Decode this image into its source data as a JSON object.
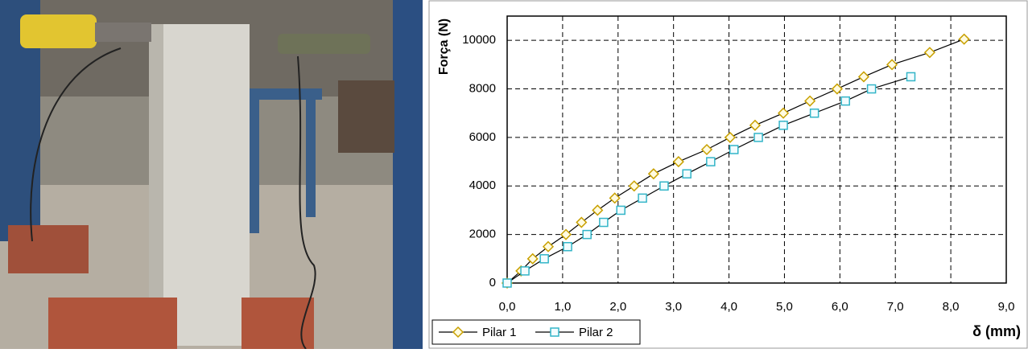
{
  "chart_data": {
    "type": "line",
    "x_label": "δ (mm)",
    "y_label": "Força (N)",
    "xlim": [
      0,
      9
    ],
    "ylim": [
      0,
      11000
    ],
    "xticks": [
      {
        "value": 0,
        "label": "0,0"
      },
      {
        "value": 1,
        "label": "1,0"
      },
      {
        "value": 2,
        "label": "2,0"
      },
      {
        "value": 3,
        "label": "3,0"
      },
      {
        "value": 4,
        "label": "4,0"
      },
      {
        "value": 5,
        "label": "5,0"
      },
      {
        "value": 6,
        "label": "6,0"
      },
      {
        "value": 7,
        "label": "7,0"
      },
      {
        "value": 8,
        "label": "8,0"
      },
      {
        "value": 9,
        "label": "9,0"
      }
    ],
    "yticks": [
      0,
      2000,
      4000,
      6000,
      8000,
      10000
    ],
    "grid": true,
    "legend": "bottom-left",
    "series": [
      {
        "name": "Pilar 1",
        "color": "#c8a000",
        "marker": "diamond",
        "x": [
          0,
          0.25,
          0.46,
          0.74,
          1.06,
          1.34,
          1.63,
          1.94,
          2.29,
          2.64,
          3.09,
          3.6,
          4.02,
          4.47,
          4.98,
          5.46,
          5.95,
          6.43,
          6.94,
          7.62,
          8.24
        ],
        "values": [
          0,
          500,
          1000,
          1500,
          2000,
          2500,
          3000,
          3500,
          4000,
          4500,
          5000,
          5500,
          6000,
          6500,
          7000,
          7500,
          8000,
          8500,
          9000,
          9500,
          10050
        ]
      },
      {
        "name": "Pilar 2",
        "color": "#33b5c8",
        "marker": "square",
        "x": [
          0,
          0.32,
          0.67,
          1.09,
          1.44,
          1.74,
          2.05,
          2.44,
          2.83,
          3.24,
          3.67,
          4.09,
          4.53,
          4.98,
          5.54,
          6.1,
          6.57,
          7.28
        ],
        "values": [
          0,
          500,
          1000,
          1500,
          2000,
          2500,
          3000,
          3500,
          4000,
          4500,
          5000,
          5500,
          6000,
          6500,
          7000,
          7500,
          8000,
          8500
        ]
      }
    ]
  }
}
